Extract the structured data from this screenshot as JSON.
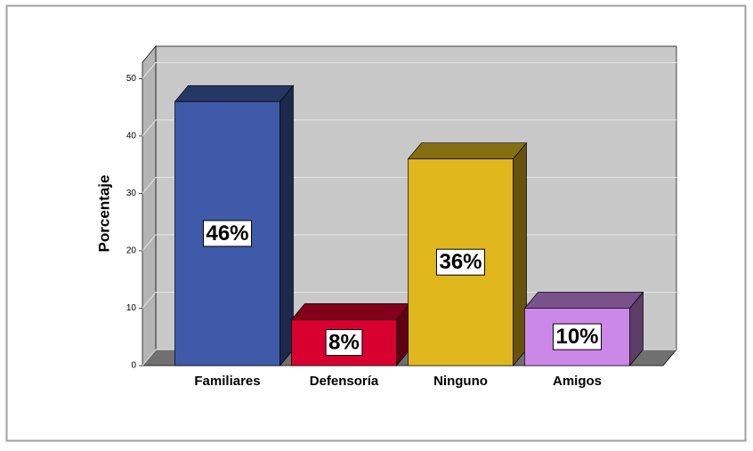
{
  "chart_data": {
    "type": "bar",
    "y_label": "Porcentaje",
    "categories": [
      "Familiares",
      "Defensoría",
      "Ninguno",
      "Amigos"
    ],
    "values": [
      46,
      8,
      36,
      10
    ],
    "value_labels": [
      "46%",
      "8%",
      "36%",
      "10%"
    ],
    "colors": [
      "#3f5aa8",
      "#d8002e",
      "#e0b81e",
      "#cc88e8"
    ],
    "ylim": [
      0,
      53
    ],
    "yticks": [
      0,
      10,
      20,
      30,
      40,
      50
    ],
    "grid": true
  }
}
